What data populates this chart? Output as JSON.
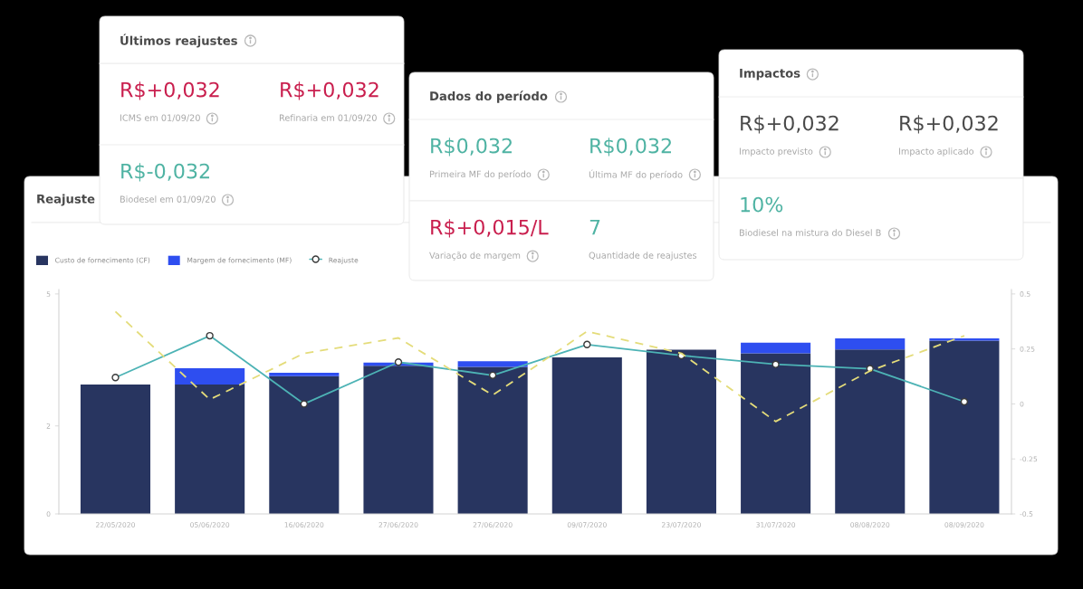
{
  "chart_data": [
    {
      "type": "other",
      "title": "Últimos reajustes",
      "annotations": [
        "R$+0,032",
        "ICMS em 01/09/20",
        "R$+0,032",
        "Refinaria em 01/09/20",
        "R$-0,032",
        "Biodesel em 01/09/20"
      ],
      "colors": [
        "#c91f4e",
        "#a8a8a8",
        "#c91f4e",
        "#a8a8a8",
        "#4fb3a3",
        "#a8a8a8"
      ]
    },
    {
      "type": "other",
      "title": "Dados do período",
      "annotations": [
        "R$0,032",
        "Primeira MF do período",
        "R$0,032",
        "Última MF do período",
        "R$+0,015/L",
        "Variação de margem",
        "7",
        "Quantidade de reajustes"
      ],
      "colors": [
        "#4fb3a3",
        "#a8a8a8",
        "#4fb3a3",
        "#a8a8a8",
        "#c91f4e",
        "#a8a8a8",
        "#4fb3a3",
        "#a8a8a8"
      ]
    },
    {
      "type": "other",
      "title": "Impactos",
      "annotations": [
        "R$+0,032",
        "Impacto previsto",
        "R$+0,032",
        "Impacto aplicado",
        "10%",
        "Biodiesel na mistura do Diesel B"
      ],
      "colors": [
        "#4a4a4a",
        "#a8a8a8",
        "#4a4a4a",
        "#a8a8a8",
        "#4fb3a3",
        "#a8a8a8"
      ]
    },
    {
      "type": "bar",
      "title": "Reajuste",
      "stacked": true,
      "legend": "top left",
      "categories": [
        "22/05/2020",
        "05/06/2020",
        "16/06/2020",
        "27/06/2020",
        "27/06/2020",
        "09/07/2020",
        "23/07/2020",
        "31/07/2020",
        "08/08/2020",
        "08/09/2020"
      ],
      "series": [
        {
          "name": "Custo de fornecimento (CF)",
          "color": "#283560",
          "values": [
            2.94,
            2.94,
            3.13,
            3.37,
            3.34,
            3.56,
            3.73,
            3.65,
            3.74,
            3.94
          ]
        },
        {
          "name": "Margem de fornecimento (MF)",
          "color": "#2e4ef0",
          "values": [
            null,
            0.37,
            0.08,
            0.07,
            0.13,
            null,
            null,
            0.24,
            0.25,
            0.05
          ]
        },
        {
          "name": "Reajuste",
          "type": "line",
          "axis": "y2",
          "color": "#4db3b5",
          "marker": "circle",
          "values": [
            0.12,
            0.31,
            0.0,
            0.19,
            0.13,
            0.27,
            0.22,
            0.18,
            0.16,
            0.01
          ]
        },
        {
          "type": "line",
          "axis": "y2",
          "color": "#e4dc7a",
          "line_style": "dashed",
          "values": [
            0.42,
            0.02,
            0.23,
            0.3,
            0.04,
            0.33,
            0.23,
            -0.08,
            0.15,
            0.31
          ]
        }
      ],
      "ylim": [
        0,
        5.1
      ],
      "yticks": [
        0,
        2,
        5
      ],
      "y2lim": [
        -0.5,
        0.52
      ],
      "y2ticks": [
        -0.5,
        -0.25,
        0,
        0.25,
        0.5
      ]
    }
  ]
}
